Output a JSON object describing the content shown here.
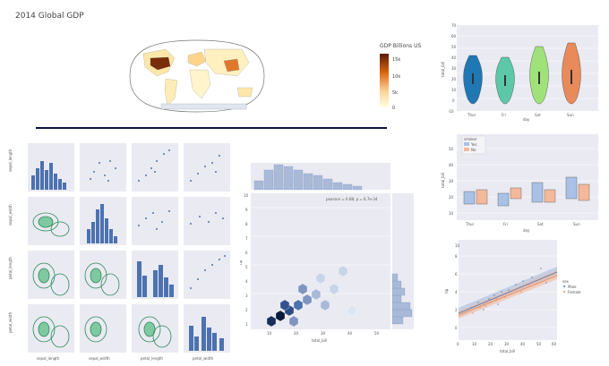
{
  "title": "2014 Global GDP",
  "colorbar": {
    "title": "GDP Billions US",
    "ticks": [
      "15k",
      "10k",
      "5k",
      "0"
    ]
  },
  "colors": {
    "panel": "#eaeaf2",
    "scatter": "#4c72b0",
    "kde": "#2e8b57",
    "hex_dark": "#0b1a3a",
    "divider": "#0a1445"
  },
  "violin": {
    "xlabel": "day",
    "ylabel": "total_bill",
    "categories": [
      "Thur",
      "Fri",
      "Sat",
      "Sun"
    ],
    "yticks": [
      "70",
      "60",
      "50",
      "40",
      "30",
      "20",
      "10",
      "0",
      "-10"
    ],
    "colors": [
      "#1f77b4",
      "#5cc8a8",
      "#a0e27a",
      "#e88a5a"
    ]
  },
  "boxplot": {
    "xlabel": "day",
    "ylabel": "total_bill",
    "categories": [
      "Thur",
      "Fri",
      "Sat",
      "Sun"
    ],
    "legend": {
      "title": "smoker",
      "items": [
        "Yes",
        "No"
      ]
    },
    "yticks": [
      "50",
      "40",
      "30",
      "20",
      "10"
    ]
  },
  "pairplot": {
    "row_labels": [
      "sepal_length",
      "sepal_width",
      "petal_length",
      "petal_width"
    ],
    "col_labels": [
      "sepal_length",
      "sepal_width",
      "petal_length",
      "petal_width"
    ]
  },
  "jointplot": {
    "annotation": "pearson = 0.68; p = 6.7e-34",
    "xlabel": "total_bill",
    "ylabel": "tip",
    "xticks": [
      "10",
      "20",
      "30",
      "40",
      "50"
    ],
    "yticks": [
      "10",
      "9",
      "8",
      "7",
      "6",
      "5",
      "4",
      "3",
      "2",
      "1"
    ]
  },
  "regplot": {
    "xlabel": "total_bill",
    "ylabel": "tip",
    "legend": {
      "title": "sex",
      "items": [
        "Male",
        "Female"
      ]
    },
    "xticks": [
      "0",
      "10",
      "20",
      "30",
      "40",
      "50",
      "60"
    ],
    "yticks": [
      "10",
      "8",
      "6",
      "4",
      "2",
      "0"
    ]
  }
}
